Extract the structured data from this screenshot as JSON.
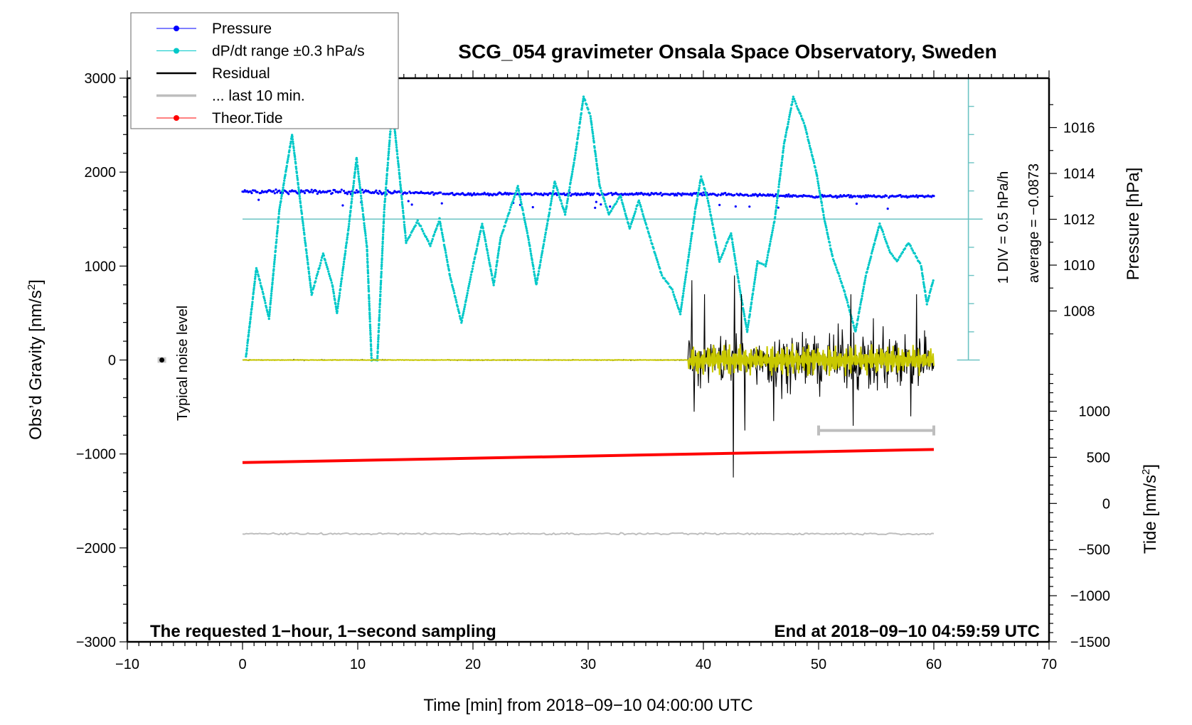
{
  "chart_data": {
    "type": "scatter",
    "title": "SCG_054 gravimeter Onsala Space Observatory, Sweden",
    "xlabel": "Time [min] from 2018−09−10 04:00:00 UTC",
    "ylabel": "Obs’d Gravity [nm/s²]",
    "ylabel_parts": {
      "main": "Obs’d Gravity [nm/s",
      "sup": "2",
      "end": "]"
    },
    "xlim": [
      -10,
      70
    ],
    "ylim": [
      -3000,
      3000
    ],
    "x_ticks": [
      -10,
      0,
      10,
      20,
      30,
      40,
      50,
      60,
      70
    ],
    "x_tick_labels": [
      "−10",
      "0",
      "10",
      "20",
      "30",
      "40",
      "50",
      "60",
      "70"
    ],
    "y_ticks": [
      -3000,
      -2000,
      -1000,
      0,
      1000,
      2000,
      3000
    ],
    "y_tick_labels": [
      "−3000",
      "−2000",
      "−1000",
      "0",
      "1000",
      "2000",
      "3000"
    ],
    "pressure_axis": {
      "label": "Pressure [hPa]",
      "ticks": [
        1008,
        1010,
        1012,
        1014,
        1016
      ],
      "tick_labels": [
        "1008",
        "1010",
        "1012",
        "1014",
        "1016"
      ]
    },
    "tide_axis": {
      "label_parts": {
        "main": "Tide [nm/s",
        "sup": "2",
        "end": "]"
      },
      "label": "Tide [nm/s²]",
      "ticks": [
        -1500,
        -1000,
        -500,
        0,
        500,
        1000
      ],
      "tick_labels": [
        "−1500",
        "−1000",
        "−500",
        "0",
        "500",
        "1000"
      ]
    },
    "legend": [
      {
        "name": "Pressure",
        "color": "#0000ff",
        "style": "line-dot"
      },
      {
        "name": "dP/dt range ±0.3 hPa/s",
        "color": "#00c8c8",
        "style": "line-dot"
      },
      {
        "name": "Residual",
        "color": "#000000",
        "style": "line"
      },
      {
        "name": "... last 10 min.",
        "color": "#bebebe",
        "style": "thick-line"
      },
      {
        "name": "Theor.Tide",
        "color": "#ff0000",
        "style": "line-dot"
      }
    ],
    "legend_position": "top-left",
    "annotations": {
      "noise_label": "Typical noise level",
      "div_label": "1 DIV = 0.5 hPa/h",
      "average_label": "average = −0.0873",
      "bottom_left": "The requested 1−hour, 1−second sampling",
      "bottom_right": "End at 2018−09−10 04:59:59 UTC"
    },
    "series": [
      {
        "name": "Pressure",
        "color": "#0000ff",
        "unit": "hPa",
        "x_range": [
          0,
          60
        ],
        "values_hPa": [
          [
            0,
            1013.2
          ],
          [
            10,
            1013.2
          ],
          [
            20,
            1013.1
          ],
          [
            30,
            1013.1
          ],
          [
            40,
            1013.1
          ],
          [
            50,
            1013.0
          ],
          [
            60,
            1013.0
          ]
        ]
      },
      {
        "name": "dP/dt",
        "color": "#00c8c8",
        "unit": "nm/s² display",
        "points": [
          [
            0.3,
            30
          ],
          [
            1.2,
            980
          ],
          [
            1.8,
            700
          ],
          [
            2.3,
            440
          ],
          [
            3.2,
            1600
          ],
          [
            4.3,
            2400
          ],
          [
            5.2,
            1500
          ],
          [
            6.0,
            700
          ],
          [
            7.0,
            1130
          ],
          [
            7.8,
            800
          ],
          [
            8.2,
            500
          ],
          [
            9.2,
            1400
          ],
          [
            9.9,
            2150
          ],
          [
            10.8,
            1200
          ],
          [
            11.2,
            0
          ],
          [
            11.7,
            0
          ],
          [
            12.3,
            1600
          ],
          [
            13.0,
            2700
          ],
          [
            13.6,
            2000
          ],
          [
            14.2,
            1250
          ],
          [
            15.2,
            1480
          ],
          [
            16.3,
            1220
          ],
          [
            17.1,
            1500
          ],
          [
            18.0,
            900
          ],
          [
            19.0,
            400
          ],
          [
            20.0,
            1000
          ],
          [
            20.8,
            1450
          ],
          [
            21.8,
            800
          ],
          [
            22.4,
            1300
          ],
          [
            23.9,
            1850
          ],
          [
            24.8,
            1300
          ],
          [
            25.5,
            800
          ],
          [
            26.6,
            1550
          ],
          [
            27.1,
            1900
          ],
          [
            28.0,
            1550
          ],
          [
            28.9,
            2200
          ],
          [
            29.6,
            2800
          ],
          [
            30.2,
            2600
          ],
          [
            31.0,
            1850
          ],
          [
            31.8,
            1550
          ],
          [
            32.8,
            1750
          ],
          [
            33.6,
            1400
          ],
          [
            34.4,
            1700
          ],
          [
            35.5,
            1250
          ],
          [
            36.4,
            900
          ],
          [
            37.3,
            750
          ],
          [
            38.0,
            490
          ],
          [
            38.6,
            1000
          ],
          [
            39.3,
            1600
          ],
          [
            39.8,
            1950
          ],
          [
            40.4,
            1700
          ],
          [
            41.4,
            1050
          ],
          [
            42.4,
            1350
          ],
          [
            43.3,
            650
          ],
          [
            43.8,
            300
          ],
          [
            44.7,
            1050
          ],
          [
            45.4,
            1000
          ],
          [
            46.2,
            1500
          ],
          [
            47.0,
            2300
          ],
          [
            47.8,
            2800
          ],
          [
            48.8,
            2500
          ],
          [
            49.8,
            2000
          ],
          [
            50.5,
            1500
          ],
          [
            51.2,
            1100
          ],
          [
            52.2,
            750
          ],
          [
            53.2,
            300
          ],
          [
            54.1,
            900
          ],
          [
            55.3,
            1450
          ],
          [
            56.2,
            1150
          ],
          [
            56.8,
            1050
          ],
          [
            57.8,
            1250
          ],
          [
            58.9,
            1000
          ],
          [
            59.4,
            600
          ],
          [
            60.0,
            870
          ]
        ]
      },
      {
        "name": "Residual",
        "color": "#000000",
        "unit": "nm/s²",
        "quiet_until_min": 38.7,
        "quiet_level": 0,
        "spikes": [
          [
            39.0,
            850
          ],
          [
            39.2,
            -550
          ],
          [
            40.1,
            700
          ],
          [
            42.6,
            -1250
          ],
          [
            42.7,
            900
          ],
          [
            43.3,
            700
          ],
          [
            43.6,
            -750
          ],
          [
            46.1,
            -650
          ],
          [
            52.8,
            700
          ],
          [
            53.0,
            -700
          ],
          [
            58.0,
            -600
          ],
          [
            58.5,
            700
          ]
        ],
        "noise_amplitude_after": 400
      },
      {
        "name": "Residual filtered",
        "color": "#c8c800",
        "unit": "nm/s²",
        "noise_amplitude_after": 150
      },
      {
        "name": "... last 10 min.",
        "color": "#bebebe",
        "unit": "nm/s²",
        "bar_x": [
          50,
          60
        ],
        "bar_y": -750,
        "line_y": -1850
      },
      {
        "name": "Theor.Tide",
        "color": "#ff0000",
        "unit": "nm/s² tide axis",
        "points": [
          [
            0,
            443
          ],
          [
            60,
            585
          ]
        ]
      }
    ],
    "noise_marker": {
      "x": -7,
      "y": 0
    },
    "dpdt_reference": {
      "y_level": 1500,
      "div_hPa_per_h": 0.5,
      "scale_x": 63
    }
  }
}
